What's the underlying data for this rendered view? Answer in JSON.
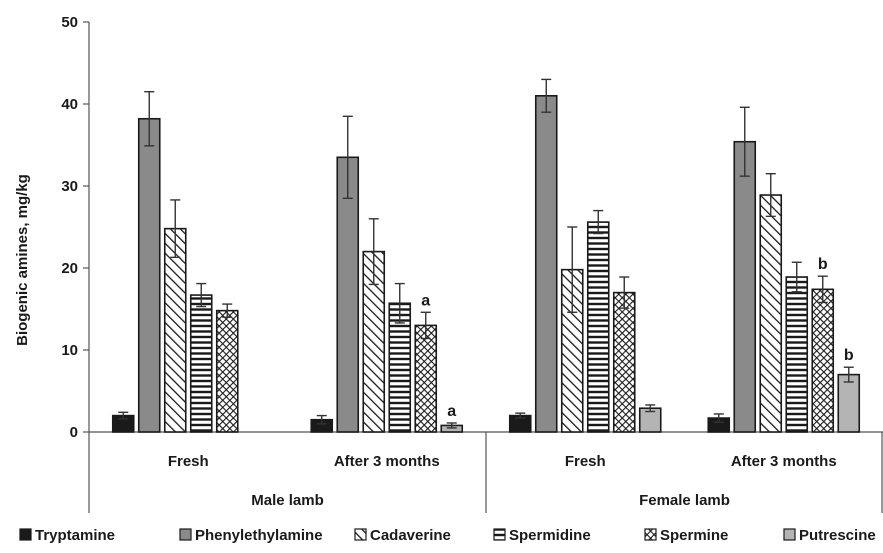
{
  "chart_data": {
    "type": "bar",
    "ylabel": "Biogenic amines, mg/kg",
    "ylim": [
      0,
      50
    ],
    "yticks": [
      "0",
      "10",
      "20",
      "30",
      "40",
      "50"
    ],
    "groups": [
      {
        "label": "Male lamb",
        "categories": [
          "Fresh",
          "After 3 months"
        ]
      },
      {
        "label": "Female lamb",
        "categories": [
          "Fresh",
          "After 3 months"
        ]
      }
    ],
    "categories": [
      "Fresh",
      "After 3 months",
      "Fresh",
      "After 3 months"
    ],
    "series": [
      {
        "name": "Tryptamine",
        "fill": "#1a1a1a",
        "pattern": "solid",
        "values": [
          2.0,
          1.5,
          2.0,
          1.7
        ],
        "errors": [
          0.4,
          0.5,
          0.3,
          0.5
        ],
        "labels": [
          "",
          "",
          "",
          ""
        ]
      },
      {
        "name": "Phenylethylamine",
        "fill": "#8a8a8a",
        "pattern": "solid",
        "values": [
          38.2,
          33.5,
          41.0,
          35.4
        ],
        "errors": [
          3.3,
          5.0,
          2.0,
          4.2
        ],
        "labels": [
          "",
          "",
          "",
          ""
        ]
      },
      {
        "name": "Cadaverine",
        "fill": "#ffffff",
        "pattern": "diagonal",
        "values": [
          24.8,
          22.0,
          19.8,
          28.9
        ],
        "errors": [
          3.5,
          4.0,
          5.2,
          2.6
        ],
        "labels": [
          "",
          "",
          "",
          ""
        ]
      },
      {
        "name": "Spermidine",
        "fill": "#ffffff",
        "pattern": "horizontal",
        "values": [
          16.7,
          15.7,
          25.6,
          18.9
        ],
        "errors": [
          1.4,
          2.4,
          1.4,
          1.8
        ],
        "labels": [
          "",
          "",
          "",
          ""
        ]
      },
      {
        "name": "Spermine",
        "fill": "#ffffff",
        "pattern": "crosshatch",
        "values": [
          14.8,
          13.0,
          17.0,
          17.4
        ],
        "errors": [
          0.8,
          1.6,
          1.9,
          1.6
        ],
        "labels": [
          "",
          "a",
          "",
          "b"
        ]
      },
      {
        "name": "Putrescine",
        "fill": "#b4b4b4",
        "pattern": "solid",
        "values": [
          0.0,
          0.8,
          2.9,
          7.0
        ],
        "errors": [
          0.0,
          0.3,
          0.4,
          0.9
        ],
        "labels": [
          "",
          "a",
          "",
          "b"
        ]
      }
    ],
    "grid": false,
    "legend_position": "bottom"
  }
}
